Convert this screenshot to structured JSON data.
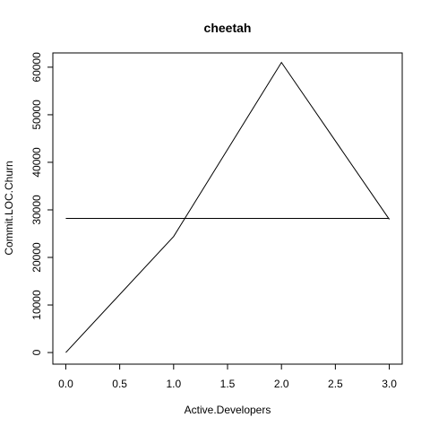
{
  "chart_data": {
    "type": "line",
    "title": "cheetah",
    "xlabel": "Active.Developers",
    "ylabel": "Commit.LOC.Churn",
    "xlim": [
      -0.12,
      3.12
    ],
    "ylim": [
      -2440,
      63000
    ],
    "xticks": [
      0.0,
      0.5,
      1.0,
      1.5,
      2.0,
      2.5,
      3.0
    ],
    "xtick_labels": [
      "0.0",
      "0.5",
      "1.0",
      "1.5",
      "2.0",
      "2.5",
      "3.0"
    ],
    "yticks": [
      0,
      10000,
      20000,
      30000,
      40000,
      50000,
      60000
    ],
    "ytick_labels": [
      "0",
      "10000",
      "20000",
      "30000",
      "40000",
      "50000",
      "60000"
    ],
    "series": [
      {
        "x": [
          0,
          1,
          2,
          3
        ],
        "y": [
          0,
          24400,
          61000,
          28000
        ]
      }
    ],
    "hline": {
      "y": 28200,
      "x": [
        0,
        3
      ]
    },
    "grid": false,
    "legend": "none",
    "line_color": "#000000"
  }
}
